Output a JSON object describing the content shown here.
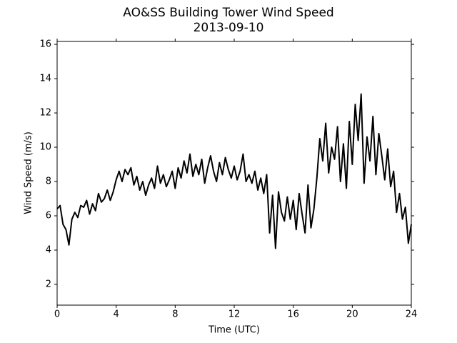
{
  "chart_data": {
    "type": "line",
    "title": "AO&SS Building Tower Wind Speed",
    "subtitle": "2013-09-10",
    "x_label": "Time (UTC)",
    "y_label": "Wind Speed (m/s)",
    "xlim": [
      0,
      24
    ],
    "xticks": [
      0,
      4,
      8,
      12,
      16,
      20,
      24
    ],
    "ylim": [
      0.79,
      16.17
    ],
    "yticks": [
      2,
      4,
      6,
      8,
      10,
      12,
      14,
      16
    ],
    "x": [
      0.0,
      0.2,
      0.4,
      0.6,
      0.8,
      1.0,
      1.2,
      1.4,
      1.6,
      1.8,
      2.0,
      2.2,
      2.4,
      2.6,
      2.8,
      3.0,
      3.2,
      3.4,
      3.6,
      3.8,
      4.0,
      4.2,
      4.4,
      4.6,
      4.8,
      5.0,
      5.2,
      5.4,
      5.6,
      5.8,
      6.0,
      6.2,
      6.4,
      6.6,
      6.8,
      7.0,
      7.2,
      7.4,
      7.6,
      7.8,
      8.0,
      8.2,
      8.4,
      8.6,
      8.8,
      9.0,
      9.2,
      9.4,
      9.6,
      9.8,
      10.0,
      10.2,
      10.4,
      10.6,
      10.8,
      11.0,
      11.2,
      11.4,
      11.6,
      11.8,
      12.0,
      12.2,
      12.4,
      12.6,
      12.8,
      13.0,
      13.2,
      13.4,
      13.6,
      13.8,
      14.0,
      14.2,
      14.4,
      14.6,
      14.8,
      15.0,
      15.2,
      15.4,
      15.6,
      15.8,
      16.0,
      16.2,
      16.4,
      16.6,
      16.8,
      17.0,
      17.2,
      17.4,
      17.6,
      17.8,
      18.0,
      18.2,
      18.4,
      18.6,
      18.8,
      19.0,
      19.2,
      19.4,
      19.6,
      19.8,
      20.0,
      20.2,
      20.4,
      20.6,
      20.8,
      21.0,
      21.2,
      21.4,
      21.6,
      21.8,
      22.0,
      22.2,
      22.4,
      22.6,
      22.8,
      23.0,
      23.2,
      23.4,
      23.6,
      23.8,
      24.0
    ],
    "series": [
      {
        "name": "Wind Speed",
        "color": "#000000",
        "values": [
          6.4,
          6.6,
          5.5,
          5.2,
          4.3,
          5.8,
          6.2,
          5.9,
          6.6,
          6.5,
          6.9,
          6.1,
          6.7,
          6.3,
          7.3,
          6.8,
          7.0,
          7.5,
          6.9,
          7.4,
          8.1,
          8.6,
          8.0,
          8.7,
          8.4,
          8.8,
          7.8,
          8.3,
          7.5,
          8.0,
          7.2,
          7.8,
          8.2,
          7.6,
          8.9,
          7.9,
          8.4,
          7.7,
          8.1,
          8.6,
          7.6,
          8.8,
          8.2,
          9.2,
          8.5,
          9.6,
          8.3,
          9.0,
          8.4,
          9.3,
          7.9,
          8.8,
          9.5,
          8.6,
          8.0,
          9.1,
          8.4,
          9.4,
          8.7,
          8.2,
          8.9,
          8.1,
          8.6,
          9.6,
          8.0,
          8.4,
          7.9,
          8.6,
          7.5,
          8.2,
          7.3,
          8.4,
          5.0,
          7.2,
          4.1,
          7.4,
          6.2,
          5.7,
          7.1,
          5.8,
          6.9,
          5.2,
          7.3,
          6.1,
          5.0,
          7.8,
          5.3,
          6.4,
          8.2,
          10.5,
          9.2,
          11.4,
          8.5,
          10.0,
          9.3,
          11.2,
          8.0,
          10.2,
          7.6,
          11.5,
          9.0,
          12.5,
          10.4,
          13.1,
          7.9,
          10.6,
          9.2,
          11.8,
          8.4,
          10.8,
          9.5,
          8.1,
          9.9,
          7.7,
          8.6,
          6.2,
          7.3,
          5.8,
          6.5,
          4.4,
          5.5
        ]
      }
    ]
  }
}
